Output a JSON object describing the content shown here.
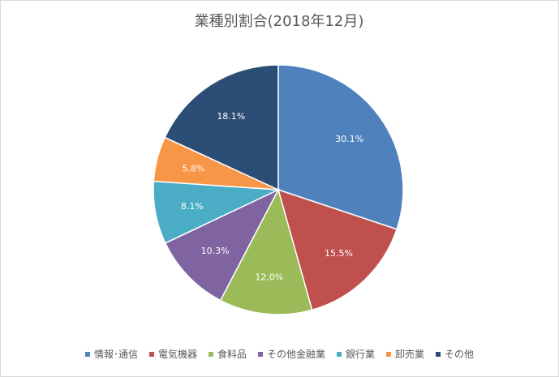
{
  "chart_data": {
    "type": "pie",
    "title": "業種別割合(2018年12月)",
    "categories": [
      "情報･通信",
      "電気機器",
      "食料品",
      "その他金融業",
      "銀行業",
      "卸売業",
      "その他"
    ],
    "values": [
      30.1,
      15.5,
      12.0,
      10.3,
      8.1,
      5.8,
      18.1
    ],
    "labels": [
      "30.1%",
      "15.5%",
      "12.0%",
      "10.3%",
      "8.1%",
      "5.8%",
      "18.1%"
    ],
    "colors": [
      "#4f81bd",
      "#c0504d",
      "#9bbb59",
      "#8064a2",
      "#4bacc6",
      "#f79646",
      "#2c4d75"
    ],
    "legend_position": "bottom",
    "start_angle": "12 o'clock",
    "direction": "clockwise"
  }
}
